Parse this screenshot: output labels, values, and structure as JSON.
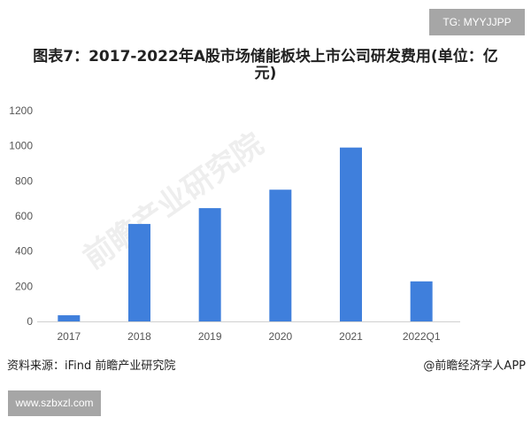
{
  "badge_top": "TG: MYYJJPP",
  "chart_data": {
    "type": "bar",
    "title": "图表7：2017-2022年A股市场储能板块上市公司研发费用(单位：亿元)",
    "categories": [
      "2017",
      "2018",
      "2019",
      "2020",
      "2021",
      "2022Q1"
    ],
    "values": [
      35,
      555,
      645,
      750,
      990,
      228
    ],
    "ylim": [
      0,
      1200
    ],
    "yticks": [
      "0",
      "200",
      "400",
      "600",
      "800",
      "1000",
      "1200"
    ],
    "grid": false,
    "bar_color": "#3f7fdc",
    "xlabel": "",
    "ylabel": ""
  },
  "watermark": "前瞻产业研究院",
  "footer": {
    "source": "资料来源：iFind 前瞻产业研究院",
    "credit": "@前瞻经济学人APP"
  },
  "badge_bottom": "www.szbxzl.com"
}
